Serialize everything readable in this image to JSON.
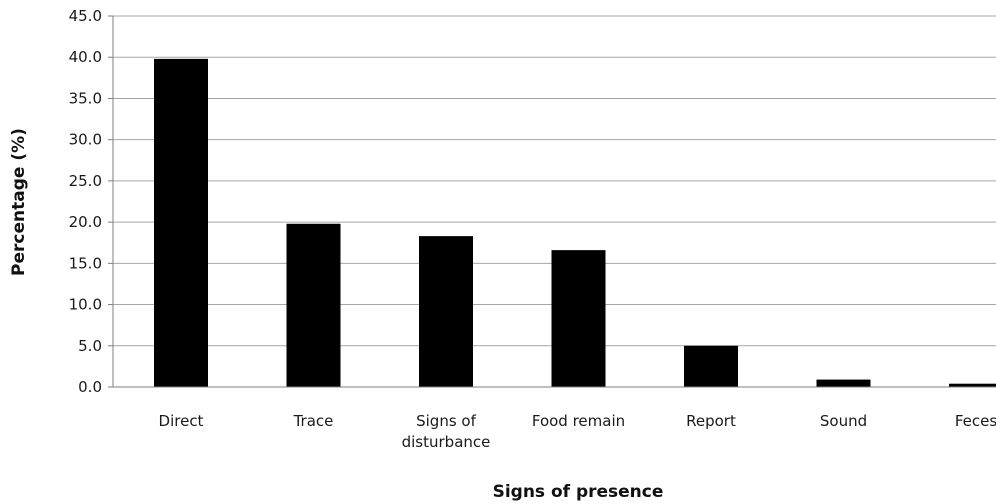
{
  "chart_data": {
    "type": "bar",
    "title": "",
    "xlabel": "Signs of presence",
    "ylabel": "Percentage (%)",
    "categories": [
      [
        "Direct"
      ],
      [
        "Trace"
      ],
      [
        "Signs of",
        "disturbance"
      ],
      [
        "Food remain"
      ],
      [
        "Report"
      ],
      [
        "Sound"
      ],
      [
        "Feces"
      ]
    ],
    "values": [
      39.8,
      19.8,
      18.3,
      16.6,
      5.0,
      0.9,
      0.4
    ],
    "ylim": [
      0,
      45
    ],
    "yticks": [
      "0.0",
      "5.0",
      "10.0",
      "15.0",
      "20.0",
      "25.0",
      "30.0",
      "35.0",
      "40.0",
      "45.0"
    ],
    "grid": true,
    "legend": "none",
    "colors": {
      "bar": "#000000",
      "grid": "#a6a6a6",
      "axis": "#7f7f7f"
    }
  }
}
